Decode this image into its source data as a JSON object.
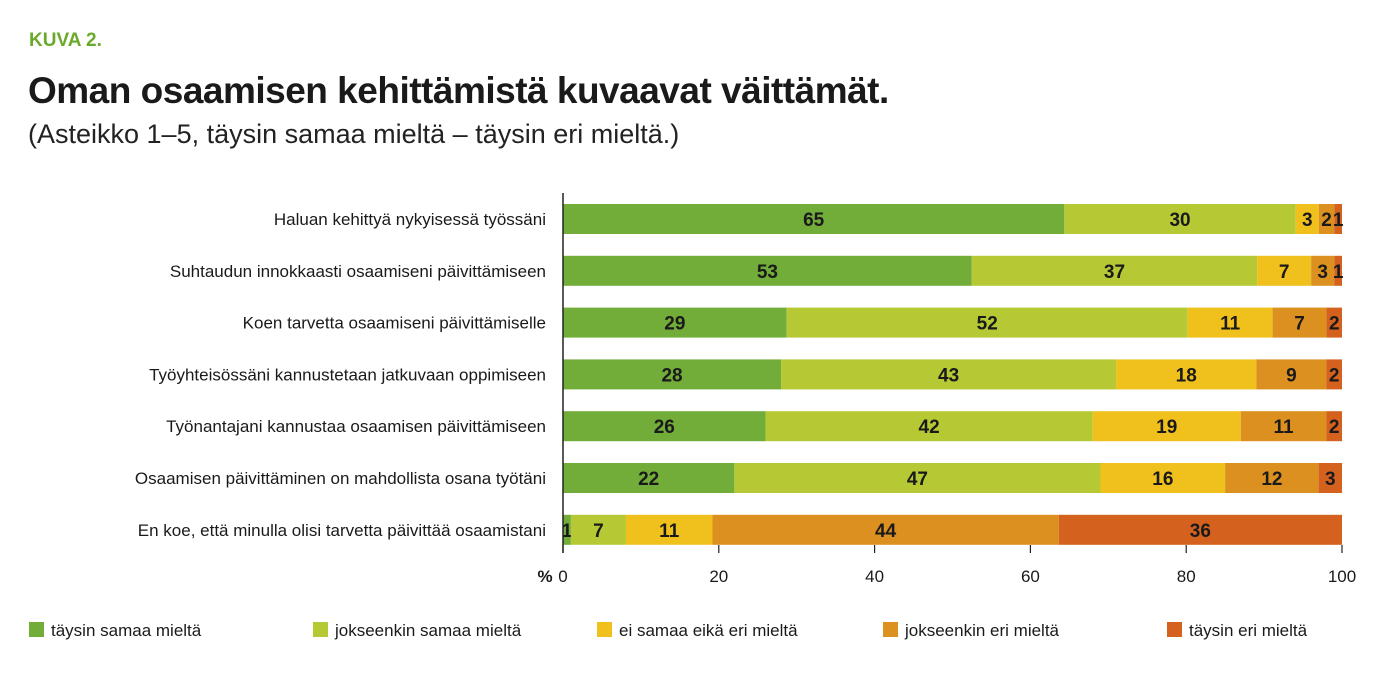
{
  "figure_label": "KUVA 2.",
  "chart_data": {
    "type": "bar",
    "orientation": "horizontal-stacked",
    "title": "Oman osaamisen kehittämistä kuvaavat väittämät.",
    "subtitle": "(Asteikko 1–5, täysin samaa mieltä – täysin eri mieltä.)",
    "xlabel": "%",
    "xlim": [
      0,
      100
    ],
    "xticks": [
      "0",
      "20",
      "40",
      "60",
      "80",
      "100"
    ],
    "categories": [
      "Haluan kehittyä nykyisessä työssäni",
      "Suhtaudun innokkaasti osaamiseni päivittämiseen",
      "Koen tarvetta osaamiseni päivittämiselle",
      "Työyhteisössäni kannustetaan jatkuvaan oppimiseen",
      "Työnantajani kannustaa osaamisen päivittämiseen",
      "Osaamisen päivittäminen on mahdollista osana työtäni",
      "En koe, että minulla olisi tarvetta päivittää osaamistani"
    ],
    "series": [
      {
        "name": "täysin samaa mieltä",
        "color": "#72ad3a",
        "values": [
          65,
          53,
          29,
          28,
          26,
          22,
          1
        ]
      },
      {
        "name": "jokseenkin samaa mieltä",
        "color": "#b6c935",
        "values": [
          30,
          37,
          52,
          43,
          42,
          47,
          7
        ]
      },
      {
        "name": "ei samaa eikä eri mieltä",
        "color": "#f0c11c",
        "values": [
          3,
          7,
          11,
          18,
          19,
          16,
          11
        ]
      },
      {
        "name": "jokseenkin eri mieltä",
        "color": "#dc9020",
        "values": [
          2,
          3,
          7,
          9,
          11,
          12,
          44
        ]
      },
      {
        "name": "täysin eri mieltä",
        "color": "#d4611e",
        "values": [
          1,
          1,
          2,
          2,
          2,
          3,
          36
        ]
      }
    ],
    "legend": "bottom",
    "grid": false
  }
}
